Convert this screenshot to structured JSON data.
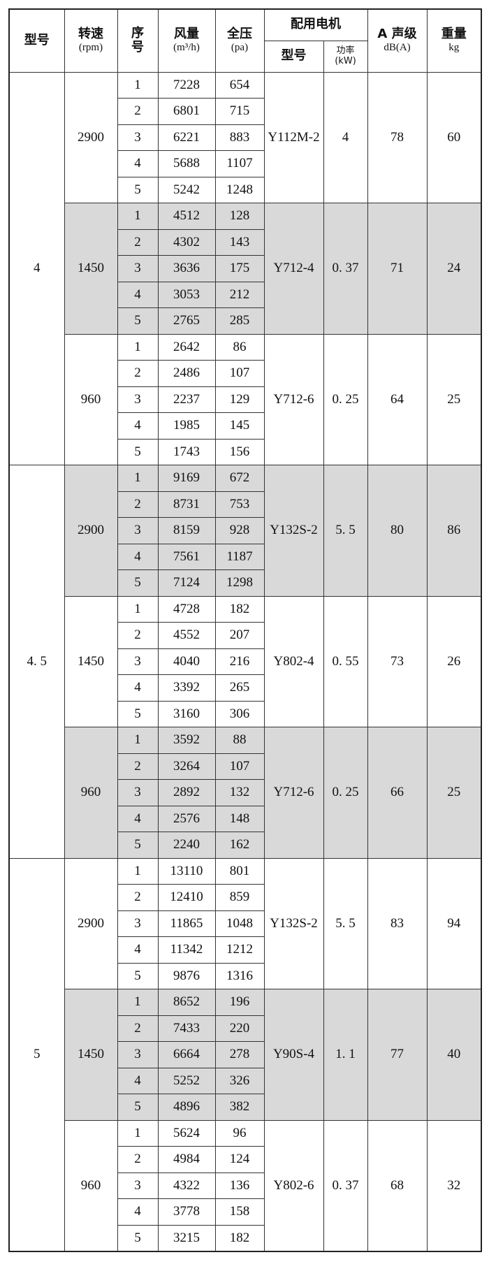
{
  "header": {
    "model": "型号",
    "speed": "转速",
    "speed_unit": "(rpm)",
    "seq": "序号",
    "airflow": "风量",
    "airflow_unit": "(m³/h)",
    "pressure": "全压",
    "pressure_unit": "(pa)",
    "motor": "配用电机",
    "motor_model": "型号",
    "motor_power": "功率",
    "motor_power_unit": "(kW)",
    "noise": "A 声级",
    "noise_unit": "dB(A)",
    "weight": "重量",
    "weight_unit": "kg"
  },
  "models": [
    {
      "model": "4",
      "groups": [
        {
          "speed": "2900",
          "motor": "Y112M-2",
          "power": "4",
          "noise": "78",
          "weight": "60",
          "rows": [
            [
              "1",
              "7228",
              "654"
            ],
            [
              "2",
              "6801",
              "715"
            ],
            [
              "3",
              "6221",
              "883"
            ],
            [
              "4",
              "5688",
              "1107"
            ],
            [
              "5",
              "5242",
              "1248"
            ]
          ]
        },
        {
          "speed": "1450",
          "motor": "Y712-4",
          "power": "0. 37",
          "noise": "71",
          "weight": "24",
          "rows": [
            [
              "1",
              "4512",
              "128"
            ],
            [
              "2",
              "4302",
              "143"
            ],
            [
              "3",
              "3636",
              "175"
            ],
            [
              "4",
              "3053",
              "212"
            ],
            [
              "5",
              "2765",
              "285"
            ]
          ]
        },
        {
          "speed": "960",
          "motor": "Y712-6",
          "power": "0. 25",
          "noise": "64",
          "weight": "25",
          "rows": [
            [
              "1",
              "2642",
              "86"
            ],
            [
              "2",
              "2486",
              "107"
            ],
            [
              "3",
              "2237",
              "129"
            ],
            [
              "4",
              "1985",
              "145"
            ],
            [
              "5",
              "1743",
              "156"
            ]
          ]
        }
      ]
    },
    {
      "model": "4. 5",
      "groups": [
        {
          "speed": "2900",
          "motor": "Y132S-2",
          "power": "5. 5",
          "noise": "80",
          "weight": "86",
          "rows": [
            [
              "1",
              "9169",
              "672"
            ],
            [
              "2",
              "8731",
              "753"
            ],
            [
              "3",
              "8159",
              "928"
            ],
            [
              "4",
              "7561",
              "1187"
            ],
            [
              "5",
              "7124",
              "1298"
            ]
          ]
        },
        {
          "speed": "1450",
          "motor": "Y802-4",
          "power": "0. 55",
          "noise": "73",
          "weight": "26",
          "rows": [
            [
              "1",
              "4728",
              "182"
            ],
            [
              "2",
              "4552",
              "207"
            ],
            [
              "3",
              "4040",
              "216"
            ],
            [
              "4",
              "3392",
              "265"
            ],
            [
              "5",
              "3160",
              "306"
            ]
          ]
        },
        {
          "speed": "960",
          "motor": "Y712-6",
          "power": "0. 25",
          "noise": "66",
          "weight": "25",
          "rows": [
            [
              "1",
              "3592",
              "88"
            ],
            [
              "2",
              "3264",
              "107"
            ],
            [
              "3",
              "2892",
              "132"
            ],
            [
              "4",
              "2576",
              "148"
            ],
            [
              "5",
              "2240",
              "162"
            ]
          ]
        }
      ]
    },
    {
      "model": "5",
      "groups": [
        {
          "speed": "2900",
          "motor": "Y132S-2",
          "power": "5. 5",
          "noise": "83",
          "weight": "94",
          "rows": [
            [
              "1",
              "13110",
              "801"
            ],
            [
              "2",
              "12410",
              "859"
            ],
            [
              "3",
              "11865",
              "1048"
            ],
            [
              "4",
              "11342",
              "1212"
            ],
            [
              "5",
              "9876",
              "1316"
            ]
          ]
        },
        {
          "speed": "1450",
          "motor": "Y90S-4",
          "power": "1. 1",
          "noise": "77",
          "weight": "40",
          "rows": [
            [
              "1",
              "8652",
              "196"
            ],
            [
              "2",
              "7433",
              "220"
            ],
            [
              "3",
              "6664",
              "278"
            ],
            [
              "4",
              "5252",
              "326"
            ],
            [
              "5",
              "4896",
              "382"
            ]
          ]
        },
        {
          "speed": "960",
          "motor": "Y802-6",
          "power": "0. 37",
          "noise": "68",
          "weight": "32",
          "rows": [
            [
              "1",
              "5624",
              "96"
            ],
            [
              "2",
              "4984",
              "124"
            ],
            [
              "3",
              "4322",
              "136"
            ],
            [
              "4",
              "3778",
              "158"
            ],
            [
              "5",
              "3215",
              "182"
            ]
          ]
        }
      ]
    }
  ]
}
